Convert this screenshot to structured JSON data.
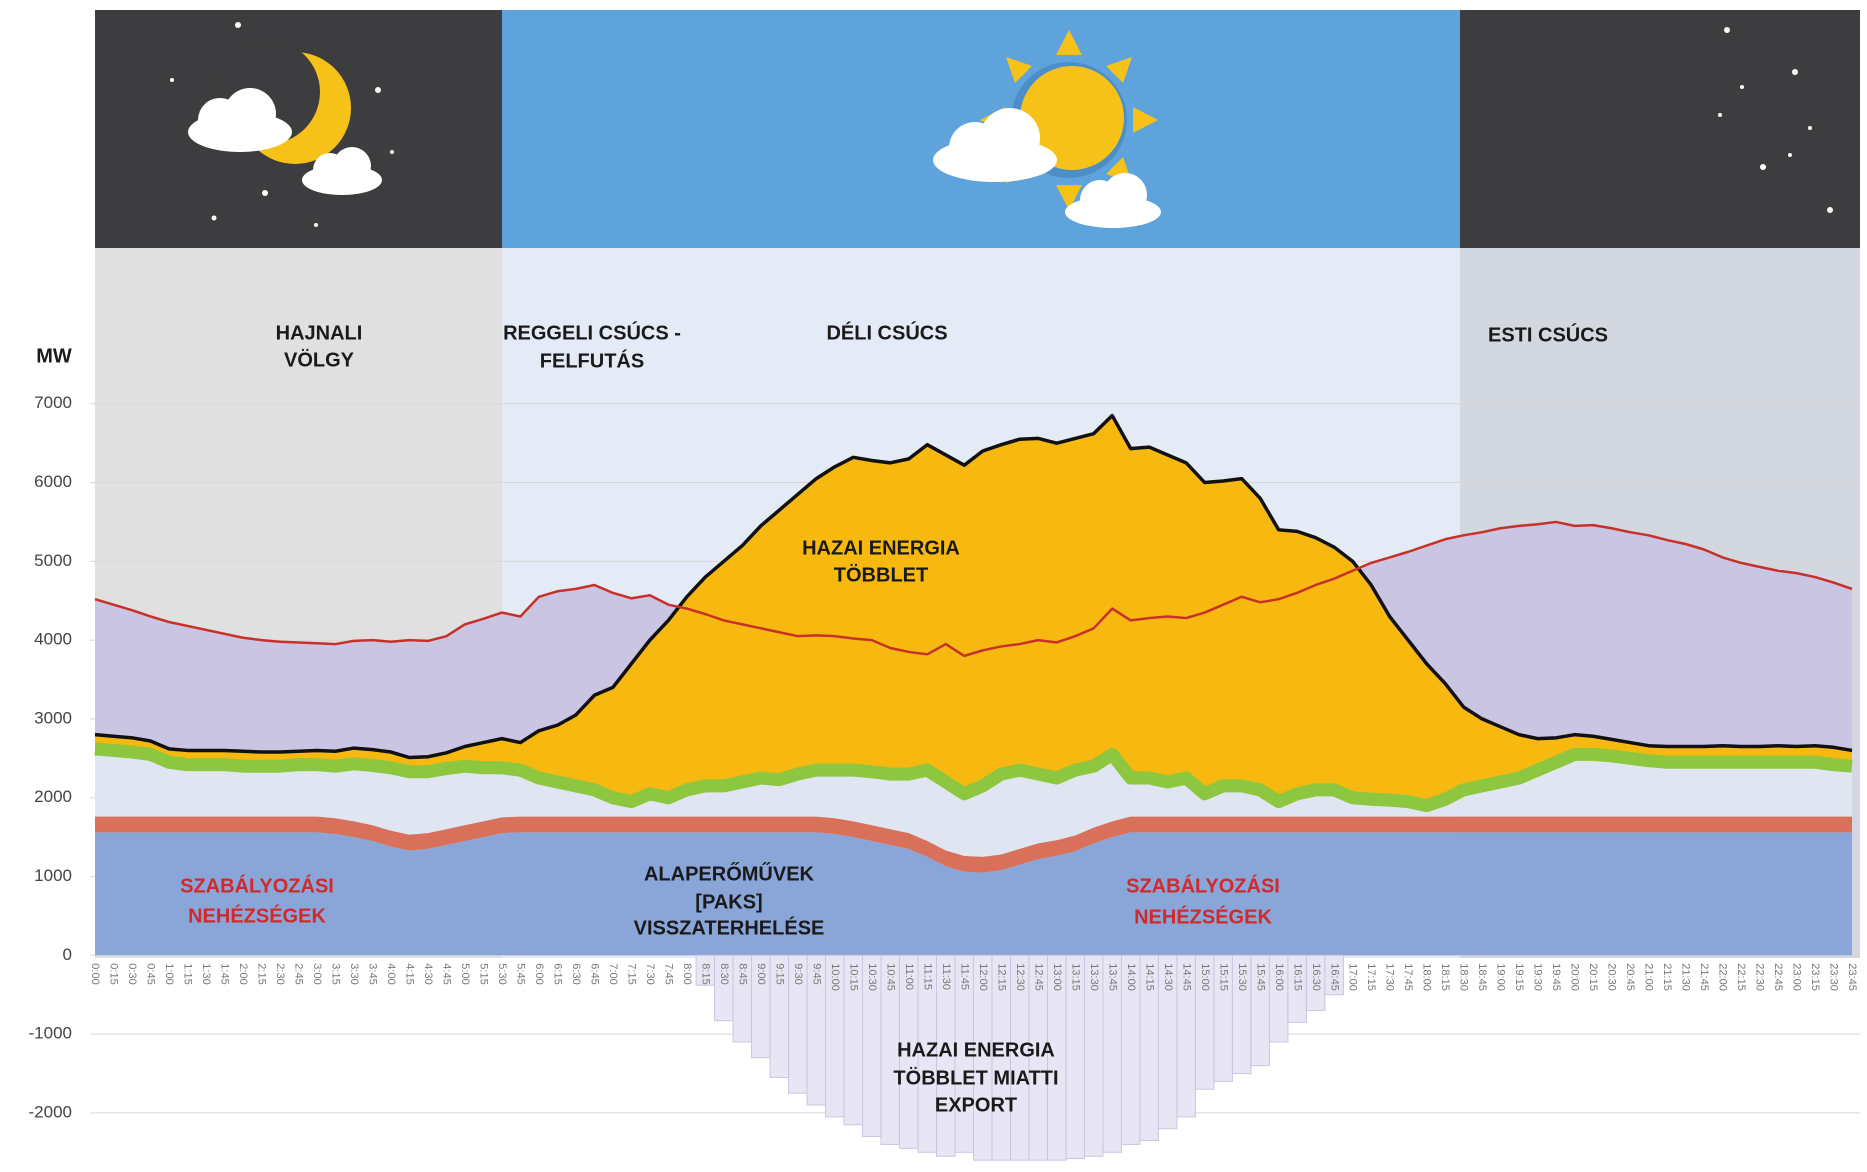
{
  "chart_data": {
    "type": "area",
    "y_label": "MW",
    "ylim": [
      -2750,
      8050
    ],
    "yticks": [
      -2000,
      -1000,
      0,
      1000,
      2000,
      3000,
      4000,
      5000,
      6000,
      7000
    ],
    "grid": true,
    "categories": [
      "0:00",
      "0:15",
      "0:30",
      "0:45",
      "1:00",
      "1:15",
      "1:30",
      "1:45",
      "2:00",
      "2:15",
      "2:30",
      "2:45",
      "3:00",
      "3:15",
      "3:30",
      "3:45",
      "4:00",
      "4:15",
      "4:30",
      "4:45",
      "5:00",
      "5:15",
      "5:30",
      "5:45",
      "6:00",
      "6:15",
      "6:30",
      "6:45",
      "7:00",
      "7:15",
      "7:30",
      "7:45",
      "8:00",
      "8:15",
      "8:30",
      "8:45",
      "9:00",
      "9:15",
      "9:30",
      "9:45",
      "10:00",
      "10:15",
      "10:30",
      "10:45",
      "11:00",
      "11:15",
      "11:30",
      "11:45",
      "12:00",
      "12:15",
      "12:30",
      "12:45",
      "13:00",
      "13:15",
      "13:30",
      "13:45",
      "14:00",
      "14:15",
      "14:30",
      "14:45",
      "15:00",
      "15:15",
      "15:30",
      "15:45",
      "16:00",
      "16:15",
      "16:30",
      "16:45",
      "17:00",
      "17:15",
      "17:30",
      "17:45",
      "18:00",
      "18:15",
      "18:30",
      "18:45",
      "19:00",
      "19:15",
      "19:30",
      "19:45",
      "20:00",
      "20:15",
      "20:30",
      "20:45",
      "21:00",
      "21:15",
      "21:30",
      "21:45",
      "22:00",
      "22:15",
      "22:30",
      "22:45",
      "23:00",
      "23:15",
      "23:30",
      "23:45"
    ],
    "series": [
      {
        "kind": "area",
        "color": "#8aa5d8",
        "values": [
          1560,
          1560,
          1560,
          1560,
          1560,
          1560,
          1560,
          1560,
          1560,
          1560,
          1560,
          1560,
          1560,
          1540,
          1500,
          1450,
          1380,
          1330,
          1350,
          1400,
          1450,
          1500,
          1550,
          1560,
          1560,
          1560,
          1560,
          1560,
          1560,
          1560,
          1560,
          1560,
          1560,
          1560,
          1560,
          1560,
          1560,
          1560,
          1560,
          1560,
          1540,
          1500,
          1450,
          1400,
          1350,
          1250,
          1130,
          1060,
          1050,
          1080,
          1150,
          1220,
          1260,
          1320,
          1420,
          1500,
          1560,
          1560,
          1560,
          1560,
          1560,
          1560,
          1560,
          1560,
          1560,
          1560,
          1560,
          1560,
          1560,
          1560,
          1560,
          1560,
          1560,
          1560,
          1560,
          1560,
          1560,
          1560,
          1560,
          1560,
          1560,
          1560,
          1560,
          1560,
          1560,
          1560,
          1560,
          1560,
          1560,
          1560,
          1560,
          1560,
          1560,
          1560,
          1560,
          1560
        ]
      },
      {
        "kind": "area",
        "stack": true,
        "color": "#d9705a",
        "values": [
          200,
          200,
          200,
          200,
          200,
          200,
          200,
          200,
          200,
          200,
          200,
          200,
          200,
          200,
          200,
          200,
          200,
          200,
          200,
          200,
          200,
          200,
          200,
          200,
          200,
          200,
          200,
          200,
          200,
          200,
          200,
          200,
          200,
          200,
          200,
          200,
          200,
          200,
          200,
          200,
          200,
          200,
          200,
          200,
          200,
          200,
          200,
          200,
          200,
          200,
          200,
          200,
          200,
          200,
          200,
          200,
          200,
          200,
          200,
          200,
          200,
          200,
          200,
          200,
          200,
          200,
          200,
          200,
          200,
          200,
          200,
          200,
          200,
          200,
          200,
          200,
          200,
          200,
          200,
          200,
          200,
          200,
          200,
          200,
          200,
          200,
          200,
          200,
          200,
          200,
          200,
          200,
          200,
          200,
          200,
          200
        ]
      },
      {
        "kind": "line",
        "color": "#8dc63f",
        "fill": "#dfe5f1",
        "values": [
          2620,
          2600,
          2580,
          2550,
          2450,
          2420,
          2420,
          2420,
          2400,
          2400,
          2400,
          2420,
          2420,
          2400,
          2430,
          2410,
          2380,
          2330,
          2330,
          2370,
          2400,
          2380,
          2380,
          2350,
          2250,
          2200,
          2150,
          2100,
          2000,
          1950,
          2050,
          2000,
          2100,
          2150,
          2150,
          2200,
          2250,
          2230,
          2300,
          2350,
          2350,
          2350,
          2330,
          2300,
          2300,
          2350,
          2200,
          2050,
          2150,
          2300,
          2350,
          2300,
          2250,
          2350,
          2400,
          2550,
          2250,
          2250,
          2200,
          2250,
          2050,
          2150,
          2150,
          2100,
          1950,
          2050,
          2100,
          2100,
          2000,
          1980,
          1970,
          1950,
          1900,
          1980,
          2100,
          2150,
          2200,
          2250,
          2350,
          2450,
          2550,
          2550,
          2530,
          2500,
          2470,
          2450,
          2450,
          2450,
          2450,
          2450,
          2450,
          2450,
          2450,
          2450,
          2420,
          2400
        ]
      },
      {
        "kind": "line",
        "color": "#111111",
        "fill": "#f7b90f",
        "values": [
          2800,
          2780,
          2760,
          2720,
          2620,
          2600,
          2600,
          2600,
          2590,
          2580,
          2580,
          2590,
          2600,
          2590,
          2630,
          2610,
          2580,
          2510,
          2520,
          2570,
          2650,
          2700,
          2750,
          2700,
          2850,
          2920,
          3050,
          3300,
          3400,
          3700,
          4000,
          4250,
          4550,
          4800,
          5000,
          5200,
          5450,
          5650,
          5850,
          6050,
          6200,
          6320,
          6280,
          6250,
          6300,
          6480,
          6350,
          6220,
          6400,
          6480,
          6550,
          6560,
          6500,
          6560,
          6620,
          6850,
          6430,
          6450,
          6350,
          6250,
          6000,
          6020,
          6050,
          5800,
          5400,
          5380,
          5300,
          5180,
          5000,
          4700,
          4300,
          4000,
          3700,
          3450,
          3150,
          3000,
          2900,
          2800,
          2750,
          2760,
          2800,
          2780,
          2740,
          2700,
          2660,
          2650,
          2650,
          2650,
          2660,
          2650,
          2650,
          2660,
          2650,
          2660,
          2640,
          2600
        ]
      },
      {
        "kind": "line",
        "color": "#c8302a",
        "fill": "#c9c5e2",
        "values": [
          4520,
          4450,
          4380,
          4300,
          4230,
          4180,
          4130,
          4080,
          4030,
          4000,
          3980,
          3970,
          3960,
          3950,
          3990,
          4000,
          3980,
          4000,
          3990,
          4050,
          4200,
          4270,
          4350,
          4300,
          4550,
          4620,
          4650,
          4700,
          4600,
          4530,
          4570,
          4450,
          4400,
          4330,
          4250,
          4200,
          4150,
          4100,
          4050,
          4060,
          4050,
          4020,
          4000,
          3900,
          3850,
          3820,
          3950,
          3800,
          3870,
          3920,
          3950,
          4000,
          3970,
          4050,
          4150,
          4400,
          4250,
          4280,
          4300,
          4280,
          4350,
          4450,
          4550,
          4480,
          4520,
          4600,
          4700,
          4780,
          4880,
          4980,
          5050,
          5120,
          5200,
          5280,
          5330,
          5370,
          5420,
          5450,
          5470,
          5500,
          5450,
          5460,
          5420,
          5370,
          5330,
          5270,
          5220,
          5150,
          5050,
          4980,
          4930,
          4880,
          4850,
          4800,
          4730,
          4650
        ]
      },
      {
        "kind": "bar",
        "color": "#e8e6f4",
        "values": [
          null,
          null,
          null,
          null,
          null,
          null,
          null,
          null,
          null,
          null,
          null,
          null,
          null,
          null,
          null,
          null,
          null,
          null,
          null,
          null,
          null,
          null,
          null,
          null,
          null,
          null,
          null,
          null,
          null,
          null,
          null,
          null,
          null,
          -380,
          -830,
          -1100,
          -1300,
          -1550,
          -1750,
          -1900,
          -2050,
          -2150,
          -2300,
          -2400,
          -2450,
          -2500,
          -2550,
          -2500,
          -2600,
          -2600,
          -2600,
          -2600,
          -2600,
          -2580,
          -2550,
          -2500,
          -2400,
          -2350,
          -2200,
          -2050,
          -1700,
          -1600,
          -1500,
          -1400,
          -1100,
          -850,
          -700,
          -500,
          null,
          null,
          null,
          null,
          null,
          null,
          null,
          null,
          null,
          null,
          null,
          null,
          null,
          null,
          null,
          null,
          null,
          null,
          null,
          null,
          null,
          null,
          null,
          null,
          null,
          null,
          null,
          null
        ]
      }
    ],
    "annotations": {
      "periods": [
        [
          "HAJNALI",
          "VÖLGY"
        ],
        [
          "REGGELI CSÚCS -",
          "FELFUTÁS"
        ],
        [
          "DÉLI CSÚCS"
        ],
        [
          "ESTI CSÚCS"
        ]
      ],
      "surplus": [
        "HAZAI ENERGIA",
        "TÖBBLET"
      ],
      "regulation_left": [
        "SZABÁLYOZÁSI",
        "NEHÉZSÉGEK"
      ],
      "base_plants": [
        "ALAPERŐMŰVEK",
        "[PAKS]",
        "VISSZATERHELÉSE"
      ],
      "regulation_right": [
        "SZABÁLYOZÁSI",
        "NEHÉZSÉGEK"
      ],
      "export": [
        "HAZAI ENERGIA",
        "TÖBBLET MIATTI",
        "EXPORT"
      ]
    }
  }
}
